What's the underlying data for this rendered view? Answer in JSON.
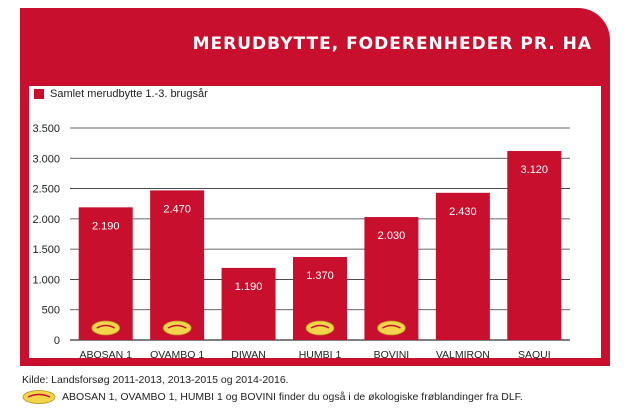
{
  "chart_data": {
    "type": "bar",
    "title": "MERUDBYTTE, FODERENHEDER PR. HA",
    "legend": [
      "Samlet merudbytte 1.-3. brugsår"
    ],
    "legend_position": "top-left",
    "categories": [
      "ABOSAN 1",
      "OVAMBO 1",
      "DIWAN",
      "HUMBI 1",
      "BOVINI",
      "VALMIRON",
      "SAQUI"
    ],
    "series": [
      {
        "name": "Samlet merudbytte 1.-3. brugsår",
        "values": [
          2190,
          2470,
          1190,
          1370,
          2030,
          2430,
          3120
        ],
        "data_labels": [
          "2.190",
          "2.470",
          "1.190",
          "1.370",
          "2.030",
          "2.430",
          "3.120"
        ]
      }
    ],
    "yticks": [
      0,
      500,
      1000,
      1500,
      2000,
      2500,
      3000,
      3500
    ],
    "ytick_labels": [
      "0",
      "500",
      "1.000",
      "1.500",
      "2.000",
      "2.500",
      "3.000",
      "3.500"
    ],
    "ylim": [
      0,
      3500
    ],
    "grid": true,
    "eco_marked": [
      true,
      true,
      false,
      true,
      true,
      false,
      false
    ],
    "bar_color": "#c8102e"
  },
  "colors": {
    "brand": "#c8102e",
    "panel": "#ffffff",
    "grid": "#333333"
  },
  "icons": {
    "eco": "okologisk-logo"
  },
  "footer": {
    "source": "Kilde: Landsforsøg 2011-2013, 2013-2015 og 2014-2016.",
    "note": "ABOSAN 1, OVAMBO 1, HUMBI 1 og BOVINI finder du også i de økologiske frøblandinger fra DLF."
  }
}
